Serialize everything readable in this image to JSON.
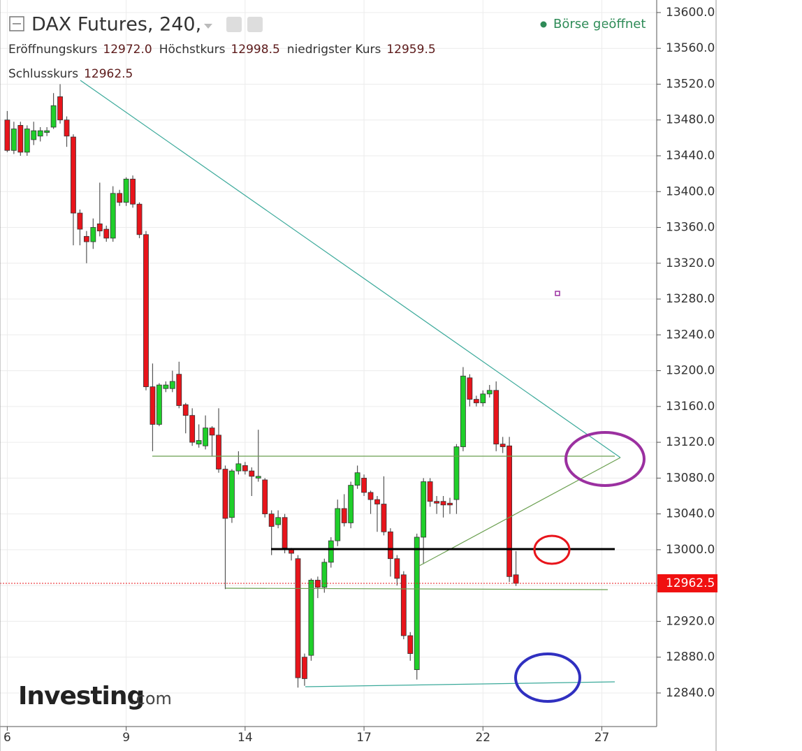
{
  "chart_data": {
    "type": "candlestick",
    "title": "DAX Futures, 240,",
    "status": "Börse geöffnet",
    "header_fields": [
      {
        "name": "Eröffnungskurs",
        "value": 12972,
        "label": "12972.0"
      },
      {
        "name": "Höchstkurs",
        "value": 12998.5,
        "label": "12998.5"
      },
      {
        "name": "niedrigster Kurs",
        "value": 12959.5,
        "label": "12959.5"
      },
      {
        "name": "Schlusskurs",
        "value": 12962.5,
        "label": "12962.5"
      }
    ],
    "watermark_brand": "Investing",
    "watermark_suffix": ".com",
    "up_color": "#1fcf2a",
    "down_color": "#e8141b",
    "open": [
      13480,
      13446,
      13474,
      13444,
      13458,
      13462,
      13466,
      13472,
      13506,
      13480,
      13461,
      13376,
      13350,
      13344,
      13364,
      13358,
      13348,
      13398,
      13388,
      13414,
      13386,
      13352,
      13182,
      13140,
      13180,
      13180,
      13196,
      13162,
      13150,
      13118,
      13116,
      13136,
      13128,
      13090,
      13036,
      13088,
      13094,
      13088,
      13080,
      13078,
      13040,
      13028,
      13036,
      13000,
      12990,
      12880,
      12882,
      12966,
      12958,
      12986,
      13010,
      13046,
      13030,
      13072,
      13080,
      13064,
      13056,
      13051,
      13020,
      12990,
      12972,
      12904,
      12866,
      13014,
      13076,
      13054,
      13054,
      13052,
      13056,
      13115,
      13192,
      13168,
      13164,
      13174,
      13178,
      13118,
      13116,
      12972
    ],
    "high": [
      13490,
      13478,
      13478,
      13474,
      13478,
      13472,
      13472,
      13510,
      13520,
      13484,
      13464,
      13380,
      13356,
      13370,
      13410,
      13362,
      13406,
      13402,
      13416,
      13418,
      13388,
      13356,
      13208,
      13186,
      13188,
      13200,
      13210,
      13164,
      13158,
      13140,
      13150,
      13138,
      13158,
      13094,
      13090,
      13110,
      13098,
      13092,
      13134,
      13080,
      13044,
      13044,
      13040,
      13002,
      12994,
      12884,
      12968,
      12970,
      12990,
      13014,
      13056,
      13062,
      13076,
      13094,
      13084,
      13066,
      13060,
      13082,
      13024,
      12994,
      12976,
      12908,
      13018,
      13080,
      13080,
      13060,
      13060,
      13058,
      13118,
      13204,
      13196,
      13172,
      13178,
      13184,
      13188,
      13126,
      13126,
      12998.5
    ],
    "low": [
      13444,
      13442,
      13440,
      13440,
      13452,
      13456,
      13462,
      13470,
      13476,
      13450,
      13340,
      13340,
      13320,
      13336,
      13350,
      13344,
      13344,
      13384,
      13384,
      13382,
      13348,
      13178,
      13110,
      13138,
      13176,
      13176,
      13158,
      13130,
      13116,
      13114,
      13112,
      13104,
      13086,
      12956,
      13030,
      13084,
      13084,
      13060,
      13076,
      13036,
      12994,
      13024,
      12996,
      12988,
      12846,
      12848,
      12876,
      12946,
      12952,
      12980,
      13004,
      13026,
      13024,
      13068,
      13060,
      13040,
      13020,
      13016,
      12970,
      12960,
      12900,
      12876,
      12855,
      12984,
      13048,
      13040,
      13036,
      13040,
      13040,
      13110,
      13160,
      13160,
      13160,
      13170,
      13110,
      13108,
      12964,
      12959.5
    ],
    "close": [
      13446,
      13470,
      13444,
      13470,
      13468,
      13468,
      13468,
      13496,
      13480,
      13462,
      13376,
      13358,
      13344,
      13360,
      13356,
      13348,
      13398,
      13388,
      13414,
      13386,
      13352,
      13182,
      13140,
      13184,
      13184,
      13188,
      13161,
      13150,
      13120,
      13122,
      13136,
      13128,
      13090,
      13035,
      13088,
      13096,
      13088,
      13082,
      13082,
      13040,
      13026,
      13036,
      13002,
      12996,
      12857,
      12856,
      12966,
      12958,
      12986,
      13010,
      13046,
      13030,
      13072,
      13086,
      13064,
      13056,
      13051,
      13020,
      12990,
      12968,
      12904,
      12884,
      13014,
      13076,
      13054,
      13052,
      13050,
      13050,
      13115,
      13194,
      13168,
      13164,
      13174,
      13178,
      13118,
      13115,
      12970,
      12962.5
    ],
    "xlim": [
      -1.1,
      98.3
    ],
    "xticks": [
      {
        "value": 0,
        "label": "6"
      },
      {
        "value": 18,
        "label": "9"
      },
      {
        "value": 36,
        "label": "14"
      },
      {
        "value": 54,
        "label": "17"
      },
      {
        "value": 72,
        "label": "22"
      },
      {
        "value": 90,
        "label": "27"
      }
    ],
    "ylim": [
      12802.5,
      13614
    ],
    "yticks": [
      {
        "value": 13600,
        "label": "13600.0"
      },
      {
        "value": 13560,
        "label": "13560.0"
      },
      {
        "value": 13520,
        "label": "13520.0"
      },
      {
        "value": 13480,
        "label": "13480.0"
      },
      {
        "value": 13440,
        "label": "13440.0"
      },
      {
        "value": 13400,
        "label": "13400.0"
      },
      {
        "value": 13360,
        "label": "13360.0"
      },
      {
        "value": 13320,
        "label": "13320.0"
      },
      {
        "value": 13280,
        "label": "13280.0"
      },
      {
        "value": 13240,
        "label": "13240.0"
      },
      {
        "value": 13200,
        "label": "13200.0"
      },
      {
        "value": 13160,
        "label": "13160.0"
      },
      {
        "value": 13120,
        "label": "13120.0"
      },
      {
        "value": 13080,
        "label": "13080.0"
      },
      {
        "value": 13040,
        "label": "13040.0"
      },
      {
        "value": 13000,
        "label": "13000.0"
      },
      {
        "value": 12960,
        "label": "12960.0"
      },
      {
        "value": 12920,
        "label": "12920.0"
      },
      {
        "value": 12880,
        "label": "12880.0"
      },
      {
        "value": 12840,
        "label": "12840.0"
      }
    ],
    "grid": true
  }
}
